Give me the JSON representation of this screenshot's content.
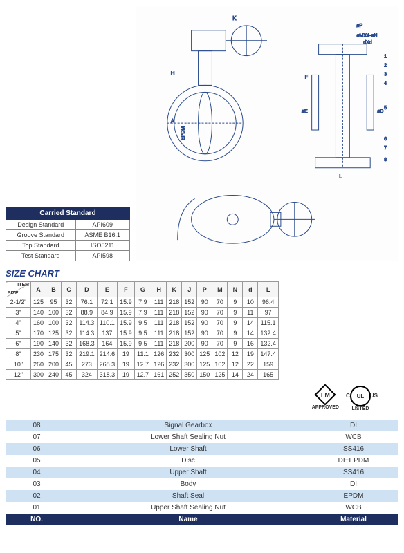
{
  "carriedStandard": {
    "title": "Carried Standard",
    "rows": [
      {
        "k": "Design Standard",
        "v": "API609"
      },
      {
        "k": "Groove Standard",
        "v": "ASME B16.1"
      },
      {
        "k": "Top Standard",
        "v": "ISO5211"
      },
      {
        "k": "Test Standard",
        "v": "API598"
      }
    ]
  },
  "drawing": {
    "labels": [
      "K",
      "H",
      "A",
      "EPDM",
      "F",
      "øE",
      "øD",
      "øP",
      "øMX4-øN",
      "dXd",
      "L"
    ],
    "callouts": [
      "1",
      "2",
      "3",
      "4",
      "5",
      "6",
      "7",
      "8"
    ]
  },
  "sizeChart": {
    "title": "SIZE CHART",
    "diagTop": "ITEM",
    "diagBot": "SIZE",
    "headers": [
      "A",
      "B",
      "C",
      "D",
      "E",
      "F",
      "G",
      "H",
      "K",
      "J",
      "P",
      "M",
      "N",
      "d",
      "L"
    ],
    "rows": [
      {
        "size": "2-1/2\"",
        "v": [
          "125",
          "95",
          "32",
          "76.1",
          "72.1",
          "15.9",
          "7.9",
          "111",
          "218",
          "152",
          "90",
          "70",
          "9",
          "10",
          "96.4"
        ]
      },
      {
        "size": "3\"",
        "v": [
          "140",
          "100",
          "32",
          "88.9",
          "84.9",
          "15.9",
          "7.9",
          "111",
          "218",
          "152",
          "90",
          "70",
          "9",
          "11",
          "97"
        ]
      },
      {
        "size": "4\"",
        "v": [
          "160",
          "100",
          "32",
          "114.3",
          "110.1",
          "15.9",
          "9.5",
          "111",
          "218",
          "152",
          "90",
          "70",
          "9",
          "14",
          "115.1"
        ]
      },
      {
        "size": "5\"",
        "v": [
          "170",
          "125",
          "32",
          "114.3",
          "137",
          "15.9",
          "9.5",
          "111",
          "218",
          "152",
          "90",
          "70",
          "9",
          "14",
          "132.4"
        ]
      },
      {
        "size": "6\"",
        "v": [
          "190",
          "140",
          "32",
          "168.3",
          "164",
          "15.9",
          "9.5",
          "111",
          "218",
          "200",
          "90",
          "70",
          "9",
          "16",
          "132.4"
        ]
      },
      {
        "size": "8\"",
        "v": [
          "230",
          "175",
          "32",
          "219.1",
          "214.6",
          "19",
          "11.1",
          "126",
          "232",
          "300",
          "125",
          "102",
          "12",
          "19",
          "147.4"
        ]
      },
      {
        "size": "10\"",
        "v": [
          "260",
          "200",
          "45",
          "273",
          "268.3",
          "19",
          "12.7",
          "126",
          "232",
          "300",
          "125",
          "102",
          "12",
          "22",
          "159"
        ]
      },
      {
        "size": "12\"",
        "v": [
          "300",
          "240",
          "45",
          "324",
          "318.3",
          "19",
          "12.7",
          "161",
          "252",
          "350",
          "150",
          "125",
          "14",
          "24",
          "165"
        ]
      }
    ]
  },
  "badges": {
    "fm": "FM",
    "fmSub": "APPROVED",
    "ul": "UL",
    "ulC": "C",
    "ulUs": "US",
    "ulSub": "LISTED"
  },
  "materials": {
    "headers": {
      "no": "NO.",
      "name": "Name",
      "material": "Material"
    },
    "rows": [
      {
        "no": "08",
        "name": "Signal Gearbox",
        "mat": "DI"
      },
      {
        "no": "07",
        "name": "Lower Shaft Sealing Nut",
        "mat": "WCB"
      },
      {
        "no": "06",
        "name": "Lower Shaft",
        "mat": "SS416"
      },
      {
        "no": "05",
        "name": "Disc",
        "mat": "DI+EPDM"
      },
      {
        "no": "04",
        "name": "Upper Shaft",
        "mat": "SS416"
      },
      {
        "no": "03",
        "name": "Body",
        "mat": "DI"
      },
      {
        "no": "02",
        "name": "Shaft Seal",
        "mat": "EPDM"
      },
      {
        "no": "01",
        "name": "Upper Shaft Sealing Nut",
        "mat": "WCB"
      }
    ]
  }
}
